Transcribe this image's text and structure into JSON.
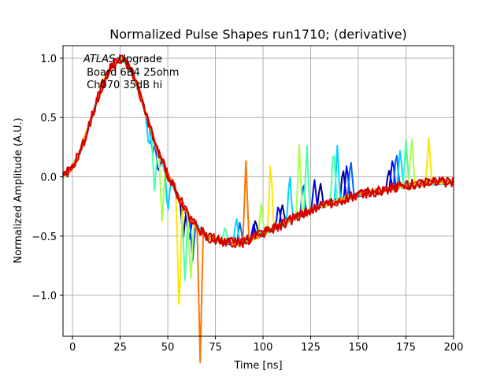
{
  "chart_data": {
    "type": "line",
    "title": "Normalized Pulse Shapes run1710; (derivative)",
    "xlabel": "Time [ns]",
    "ylabel": "Normalized Amplitude (A.U.)",
    "xlim": [
      -5,
      200
    ],
    "ylim": [
      -1.345,
      1.106
    ],
    "xticks": [
      0,
      25,
      50,
      75,
      100,
      125,
      150,
      175,
      200
    ],
    "xtick_labels": [
      "0",
      "25",
      "50",
      "75",
      "100",
      "125",
      "150",
      "175",
      "200"
    ],
    "yticks": [
      1.0,
      0.5,
      0.0,
      -0.5,
      -1.0
    ],
    "ytick_labels": [
      "1.0",
      "0.5",
      "0.0",
      "−0.5",
      "−1.0"
    ],
    "grid": true,
    "legend": "none",
    "annotation": {
      "italic": "ATLAS",
      "line1_rest": " Upgrade",
      "line2": " Board 6B4 25ohm",
      "line3": " Ch070 35dB hi",
      "placement": "top-left"
    },
    "colormap": "jet",
    "base_shape": {
      "x": [
        -5,
        0,
        5,
        10,
        15,
        20,
        25,
        30,
        35,
        40,
        45,
        50,
        55,
        60,
        65,
        70,
        75,
        80,
        85,
        90,
        100,
        110,
        120,
        130,
        140,
        150,
        160,
        170,
        180,
        190,
        200
      ],
      "y": [
        0.0,
        0.08,
        0.25,
        0.5,
        0.75,
        0.92,
        1.0,
        0.93,
        0.72,
        0.45,
        0.2,
        0.02,
        -0.15,
        -0.3,
        -0.42,
        -0.5,
        -0.53,
        -0.55,
        -0.56,
        -0.55,
        -0.48,
        -0.4,
        -0.32,
        -0.25,
        -0.2,
        -0.15,
        -0.12,
        -0.09,
        -0.06,
        -0.05,
        -0.04
      ]
    },
    "series": [
      {
        "name": "series-1",
        "color": "#00007f",
        "spikes": [
          [
            58,
            -0.3
          ],
          [
            96,
            0.15
          ],
          [
            110,
            0.2
          ],
          [
            130,
            0.22
          ],
          [
            142,
            0.28
          ],
          [
            166,
            0.18
          ]
        ]
      },
      {
        "name": "series-2",
        "color": "#0000ff",
        "spikes": [
          [
            45,
            -0.2
          ],
          [
            61,
            -0.25
          ],
          [
            95,
            0.1
          ],
          [
            108,
            0.18
          ],
          [
            127,
            0.25
          ],
          [
            144,
            0.3
          ],
          [
            168,
            0.28
          ]
        ]
      },
      {
        "name": "series-3",
        "color": "#0063ff",
        "spikes": [
          [
            42,
            -0.15
          ],
          [
            63,
            -0.35
          ],
          [
            88,
            0.18
          ],
          [
            121,
            0.3
          ],
          [
            146,
            0.35
          ],
          [
            170,
            0.32
          ]
        ]
      },
      {
        "name": "series-4",
        "color": "#00d4ff",
        "spikes": [
          [
            40,
            -0.2
          ],
          [
            50,
            -0.35
          ],
          [
            86,
            0.25
          ],
          [
            114,
            0.4
          ],
          [
            139,
            0.45
          ],
          [
            172,
            0.35
          ]
        ]
      },
      {
        "name": "series-5",
        "color": "#4dffaa",
        "spikes": [
          [
            43,
            -0.4
          ],
          [
            59,
            -0.6
          ],
          [
            80,
            0.15
          ],
          [
            123,
            0.55
          ],
          [
            137,
            0.5
          ],
          [
            175,
            0.4
          ]
        ]
      },
      {
        "name": "series-6",
        "color": "#aaff4d",
        "spikes": [
          [
            47,
            -0.5
          ],
          [
            62,
            -0.55
          ],
          [
            99,
            0.25
          ],
          [
            119,
            0.6
          ],
          [
            178,
            0.45
          ]
        ]
      },
      {
        "name": "series-7",
        "color": "#ffe600",
        "spikes": [
          [
            56,
            -1.02
          ],
          [
            104,
            0.6
          ],
          [
            187,
            0.4
          ]
        ]
      },
      {
        "name": "series-8",
        "color": "#ff7400",
        "spikes": [
          [
            67,
            -1.1
          ],
          [
            91,
            0.68
          ]
        ]
      },
      {
        "name": "series-9",
        "color": "#d40000",
        "spikes": []
      },
      {
        "name": "series-10",
        "color": "#d40000",
        "spikes": []
      }
    ]
  }
}
